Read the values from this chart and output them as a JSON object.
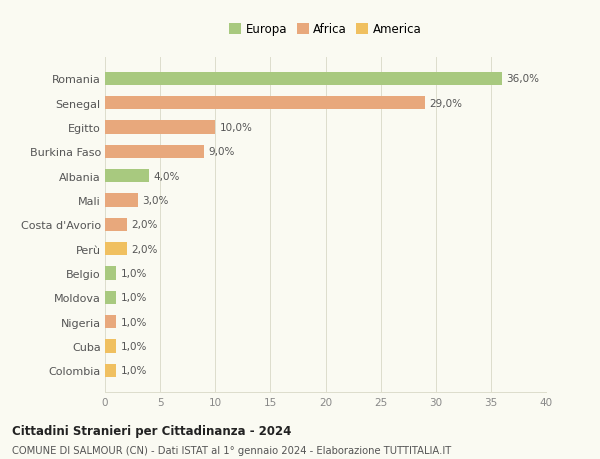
{
  "categories": [
    "Romania",
    "Senegal",
    "Egitto",
    "Burkina Faso",
    "Albania",
    "Mali",
    "Costa d'Avorio",
    "Perù",
    "Belgio",
    "Moldova",
    "Nigeria",
    "Cuba",
    "Colombia"
  ],
  "values": [
    36.0,
    29.0,
    10.0,
    9.0,
    4.0,
    3.0,
    2.0,
    2.0,
    1.0,
    1.0,
    1.0,
    1.0,
    1.0
  ],
  "continents": [
    "Europa",
    "Africa",
    "Africa",
    "Africa",
    "Europa",
    "Africa",
    "Africa",
    "America",
    "Europa",
    "Europa",
    "Africa",
    "America",
    "America"
  ],
  "colors": {
    "Europa": "#a8c97f",
    "Africa": "#e8a87c",
    "America": "#f0c060"
  },
  "legend_order": [
    "Europa",
    "Africa",
    "America"
  ],
  "xlim": [
    0,
    40
  ],
  "xticks": [
    0,
    5,
    10,
    15,
    20,
    25,
    30,
    35,
    40
  ],
  "title": "Cittadini Stranieri per Cittadinanza - 2024",
  "subtitle": "COMUNE DI SALMOUR (CN) - Dati ISTAT al 1° gennaio 2024 - Elaborazione TUTTITALIA.IT",
  "background_color": "#fafaf2",
  "grid_color": "#ddddcc",
  "bar_height": 0.55
}
